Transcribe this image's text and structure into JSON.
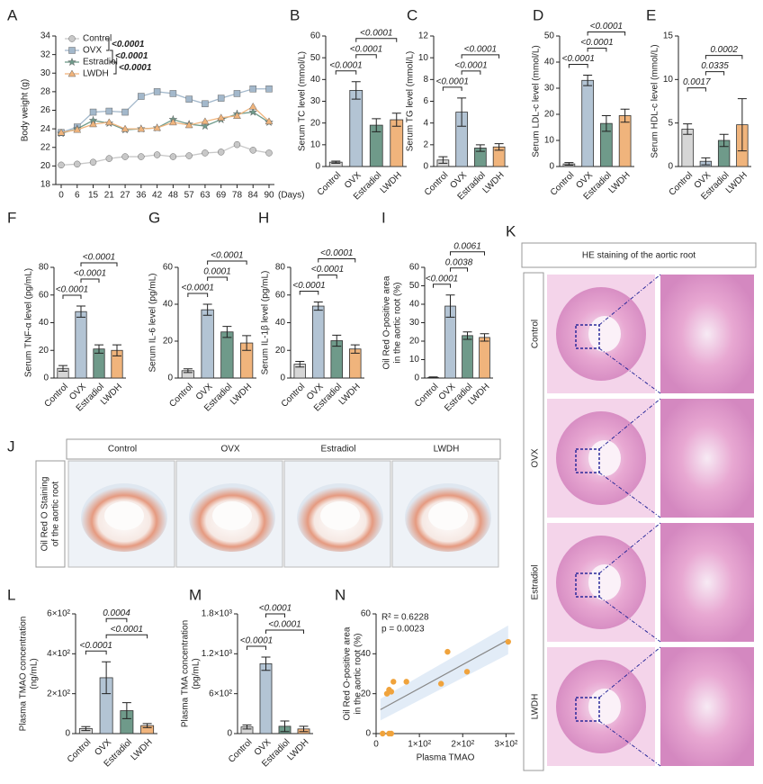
{
  "chart_data": [
    {
      "label": "A",
      "type": "line",
      "y_label": "Body weight (g)",
      "x_label": "(Days)",
      "categories": [
        0,
        6,
        15,
        21,
        27,
        36,
        42,
        48,
        57,
        63,
        69,
        78,
        84,
        90
      ],
      "ylim": [
        18,
        34
      ],
      "yticks": [
        18,
        20,
        22,
        24,
        26,
        28,
        30,
        32,
        34
      ],
      "series": [
        {
          "name": "Control",
          "color": "#c8c8c8",
          "marker": "circle",
          "values": [
            20.1,
            20.2,
            20.4,
            20.8,
            21.0,
            21.0,
            21.2,
            21.0,
            21.1,
            21.4,
            21.5,
            22.3,
            21.7,
            21.4
          ]
        },
        {
          "name": "OVX",
          "color": "#a3b8cb",
          "marker": "square",
          "values": [
            23.6,
            24.2,
            25.8,
            25.9,
            25.8,
            27.5,
            28.0,
            27.8,
            27.2,
            26.7,
            27.3,
            27.8,
            28.3,
            28.3
          ]
        },
        {
          "name": "Estradiol",
          "color": "#6f9a8a",
          "marker": "star",
          "values": [
            23.5,
            24.0,
            24.9,
            24.6,
            23.9,
            24.0,
            24.1,
            25.0,
            24.5,
            24.3,
            25.0,
            25.6,
            25.8,
            24.7
          ]
        },
        {
          "name": "LWDH",
          "color": "#f0b47c",
          "marker": "triangle",
          "values": [
            23.6,
            23.9,
            24.5,
            24.7,
            24.0,
            24.0,
            24.1,
            24.7,
            24.4,
            24.8,
            25.2,
            25.4,
            26.4,
            24.8
          ]
        }
      ],
      "legend_annotations": [
        "<0.0001",
        "<0.0001",
        "<0.0001"
      ]
    },
    {
      "label": "B",
      "type": "bar",
      "y_label": "Serum TC level (mmol/L)",
      "categories": [
        "Control",
        "OVX",
        "Estradiol",
        "LWDH"
      ],
      "colors": [
        "#d6d6d6",
        "#b3c4d4",
        "#6f9a8a",
        "#f0b47c"
      ],
      "values": [
        2,
        35,
        19,
        21.5
      ],
      "errors": [
        0.5,
        4,
        3,
        3
      ],
      "ylim": [
        0,
        60
      ],
      "yticks": [
        0,
        10,
        20,
        30,
        40,
        50,
        60
      ],
      "comparisons": [
        {
          "pair": [
            "Control",
            "OVX"
          ],
          "p": "<0.0001"
        },
        {
          "pair": [
            "OVX",
            "Estradiol"
          ],
          "p": "<0.0001"
        },
        {
          "pair": [
            "OVX",
            "LWDH"
          ],
          "p": "<0.0001"
        }
      ]
    },
    {
      "label": "C",
      "type": "bar",
      "y_label": "Serum TG level (mmol/L)",
      "categories": [
        "Control",
        "OVX",
        "Estradiol",
        "LWDH"
      ],
      "colors": [
        "#d6d6d6",
        "#b3c4d4",
        "#6f9a8a",
        "#f0b47c"
      ],
      "values": [
        0.6,
        5,
        1.7,
        1.8
      ],
      "errors": [
        0.3,
        1.3,
        0.3,
        0.3
      ],
      "ylim": [
        0,
        12
      ],
      "yticks": [
        0,
        2,
        4,
        6,
        8,
        10,
        12
      ],
      "comparisons": [
        {
          "pair": [
            "Control",
            "OVX"
          ],
          "p": "<0.0001"
        },
        {
          "pair": [
            "OVX",
            "Estradiol"
          ],
          "p": "<0.0001"
        },
        {
          "pair": [
            "OVX",
            "LWDH"
          ],
          "p": "<0.0001"
        }
      ]
    },
    {
      "label": "D",
      "type": "bar",
      "y_label": "Serum LDL-c level (mmol/L)",
      "categories": [
        "Control",
        "OVX",
        "Estradiol",
        "LWDH"
      ],
      "colors": [
        "#d6d6d6",
        "#b3c4d4",
        "#6f9a8a",
        "#f0b47c"
      ],
      "values": [
        1,
        33,
        16.5,
        19.5
      ],
      "errors": [
        0.5,
        2,
        3,
        2.5
      ],
      "ylim": [
        0,
        50
      ],
      "yticks": [
        0,
        10,
        20,
        30,
        40,
        50
      ],
      "comparisons": [
        {
          "pair": [
            "Control",
            "OVX"
          ],
          "p": "<0.0001"
        },
        {
          "pair": [
            "OVX",
            "Estradiol"
          ],
          "p": "<0.0001"
        },
        {
          "pair": [
            "OVX",
            "LWDH"
          ],
          "p": "<0.0001"
        }
      ]
    },
    {
      "label": "E",
      "type": "bar",
      "y_label": "Serum HDL-c level (mmol/L)",
      "categories": [
        "Control",
        "OVX",
        "Estradiol",
        "LWDH"
      ],
      "colors": [
        "#d6d6d6",
        "#b3c4d4",
        "#6f9a8a",
        "#f0b47c"
      ],
      "values": [
        4.3,
        0.6,
        3,
        4.8
      ],
      "errors": [
        0.6,
        0.4,
        0.7,
        3
      ],
      "ylim": [
        0,
        15
      ],
      "yticks": [
        0,
        5,
        10,
        15
      ],
      "comparisons": [
        {
          "pair": [
            "Control",
            "OVX"
          ],
          "p": "0.0017"
        },
        {
          "pair": [
            "OVX",
            "Estradiol"
          ],
          "p": "0.0335"
        },
        {
          "pair": [
            "OVX",
            "LWDH"
          ],
          "p": "0.0002"
        }
      ]
    },
    {
      "label": "F",
      "type": "bar",
      "y_label": "Serum TNF-α level (pg/mL)",
      "categories": [
        "Control",
        "OVX",
        "Estradiol",
        "LWDH"
      ],
      "colors": [
        "#d6d6d6",
        "#b3c4d4",
        "#6f9a8a",
        "#f0b47c"
      ],
      "values": [
        7,
        48,
        21,
        20
      ],
      "errors": [
        2,
        4,
        3,
        4
      ],
      "ylim": [
        0,
        80
      ],
      "yticks": [
        0,
        20,
        40,
        60,
        80
      ],
      "comparisons": [
        {
          "pair": [
            "Control",
            "OVX"
          ],
          "p": "<0.0001"
        },
        {
          "pair": [
            "OVX",
            "Estradiol"
          ],
          "p": "<0.0001"
        },
        {
          "pair": [
            "OVX",
            "LWDH"
          ],
          "p": "<0.0001"
        }
      ]
    },
    {
      "label": "G",
      "type": "bar",
      "y_label": "Serum IL-6 level (pg/mL)",
      "categories": [
        "Control",
        "OVX",
        "Estradiol",
        "LWDH"
      ],
      "colors": [
        "#d6d6d6",
        "#b3c4d4",
        "#6f9a8a",
        "#f0b47c"
      ],
      "values": [
        4,
        37,
        25,
        19
      ],
      "errors": [
        1,
        3,
        3,
        4
      ],
      "ylim": [
        0,
        60
      ],
      "yticks": [
        0,
        20,
        40,
        60
      ],
      "comparisons": [
        {
          "pair": [
            "Control",
            "OVX"
          ],
          "p": "<0.0001"
        },
        {
          "pair": [
            "OVX",
            "Estradiol"
          ],
          "p": "0.0001"
        },
        {
          "pair": [
            "OVX",
            "LWDH"
          ],
          "p": "<0.0001"
        }
      ]
    },
    {
      "label": "H",
      "type": "bar",
      "y_label": "Serum IL-1β level (pg/mL)",
      "categories": [
        "Control",
        "OVX",
        "Estradiol",
        "LWDH"
      ],
      "colors": [
        "#d6d6d6",
        "#b3c4d4",
        "#6f9a8a",
        "#f0b47c"
      ],
      "values": [
        10,
        52,
        27,
        21
      ],
      "errors": [
        2,
        3,
        4,
        3
      ],
      "ylim": [
        0,
        80
      ],
      "yticks": [
        0,
        20,
        40,
        60,
        80
      ],
      "comparisons": [
        {
          "pair": [
            "Control",
            "OVX"
          ],
          "p": "<0.0001"
        },
        {
          "pair": [
            "OVX",
            "Estradiol"
          ],
          "p": "<0.0001"
        },
        {
          "pair": [
            "OVX",
            "LWDH"
          ],
          "p": "<0.0001"
        }
      ]
    },
    {
      "label": "I",
      "type": "bar",
      "y_label": [
        "Oil Red O-positive area",
        "in the aortic root (%)"
      ],
      "categories": [
        "Control",
        "OVX",
        "Estradiol",
        "LWDH"
      ],
      "colors": [
        "#d6d6d6",
        "#b3c4d4",
        "#6f9a8a",
        "#f0b47c"
      ],
      "values": [
        0.3,
        39,
        23,
        22
      ],
      "errors": [
        0.3,
        6,
        2,
        2
      ],
      "ylim": [
        0,
        60
      ],
      "yticks": [
        0,
        10,
        20,
        30,
        40,
        50,
        60
      ],
      "comparisons": [
        {
          "pair": [
            "Control",
            "OVX"
          ],
          "p": "<0.0001"
        },
        {
          "pair": [
            "OVX",
            "Estradiol"
          ],
          "p": "0.0038"
        },
        {
          "pair": [
            "OVX",
            "LWDH"
          ],
          "p": "0.0061"
        }
      ]
    },
    {
      "label": "L",
      "type": "bar",
      "y_label": [
        "Plasma TMAO concentration",
        "(ng/mL)"
      ],
      "categories": [
        "Control",
        "OVX",
        "Estradiol",
        "LWDH"
      ],
      "colors": [
        "#d6d6d6",
        "#b3c4d4",
        "#6f9a8a",
        "#f0b47c"
      ],
      "values": [
        25,
        280,
        115,
        40
      ],
      "errors": [
        10,
        80,
        40,
        10
      ],
      "ylim": [
        0,
        600
      ],
      "yticks": [
        0,
        {
          "value": 200,
          "label": "2×10²"
        },
        {
          "value": 400,
          "label": "4×10²"
        },
        {
          "value": 600,
          "label": "6×10²"
        }
      ],
      "comparisons": [
        {
          "pair": [
            "Control",
            "OVX"
          ],
          "p": "<0.0001"
        },
        {
          "pair": [
            "OVX",
            "LWDH"
          ],
          "p": "<0.0001"
        },
        {
          "pair": [
            "OVX",
            "Estradiol"
          ],
          "p": "0.0004"
        }
      ]
    },
    {
      "label": "M",
      "type": "bar",
      "y_label": [
        "Plasma TMA concentration",
        "(pg/mL)"
      ],
      "categories": [
        "Control",
        "OVX",
        "Estradiol",
        "LWDH"
      ],
      "colors": [
        "#d6d6d6",
        "#b3c4d4",
        "#6f9a8a",
        "#f0b47c"
      ],
      "values": [
        100,
        1050,
        110,
        70
      ],
      "errors": [
        30,
        100,
        80,
        40
      ],
      "ylim": [
        0,
        1800
      ],
      "yticks": [
        0,
        {
          "value": 600,
          "label": "6×10²"
        },
        {
          "value": 1200,
          "label": "1.2×10³"
        },
        {
          "value": 1800,
          "label": "1.8×10³"
        }
      ],
      "comparisons": [
        {
          "pair": [
            "Control",
            "OVX"
          ],
          "p": "<0.0001"
        },
        {
          "pair": [
            "OVX",
            "LWDH"
          ],
          "p": "<0.0001"
        },
        {
          "pair": [
            "OVX",
            "Estradiol"
          ],
          "p": "<0.0001"
        }
      ]
    },
    {
      "label": "N",
      "type": "scatter",
      "x_label": "Plasma TMAO",
      "y_label": [
        "Oil Red O-positive area",
        "in the aortic root (%)"
      ],
      "color": "#f0a33c",
      "x": [
        15,
        25,
        30,
        35,
        40,
        70,
        150,
        165,
        210,
        305,
        35,
        30
      ],
      "y": [
        0,
        20,
        22,
        0,
        26,
        26,
        25,
        41,
        31,
        46,
        21,
        0
      ],
      "xlim": [
        0,
        320
      ],
      "xticks": [
        0,
        {
          "value": 100,
          "label": "1×10²"
        },
        {
          "value": 200,
          "label": "2×10²"
        },
        {
          "value": 300,
          "label": "3×10²"
        }
      ],
      "ylim": [
        0,
        60
      ],
      "yticks": [
        0,
        20,
        40,
        60
      ],
      "fit_line": {
        "x": [
          10,
          305
        ],
        "y": [
          12,
          47
        ]
      },
      "annotations": [
        "R² = 0.6228",
        "p = 0.0023"
      ]
    }
  ],
  "image_panels": [
    {
      "label": "J",
      "side_label": [
        "Oil Red O Staining",
        "of the aortic root"
      ],
      "columns": [
        "Control",
        "OVX",
        "Estradiol",
        "LWDH"
      ]
    },
    {
      "label": "K",
      "title": "HE staining of the aortic root",
      "rows": [
        "Control",
        "OVX",
        "Estradiol",
        "LWDH"
      ]
    }
  ]
}
